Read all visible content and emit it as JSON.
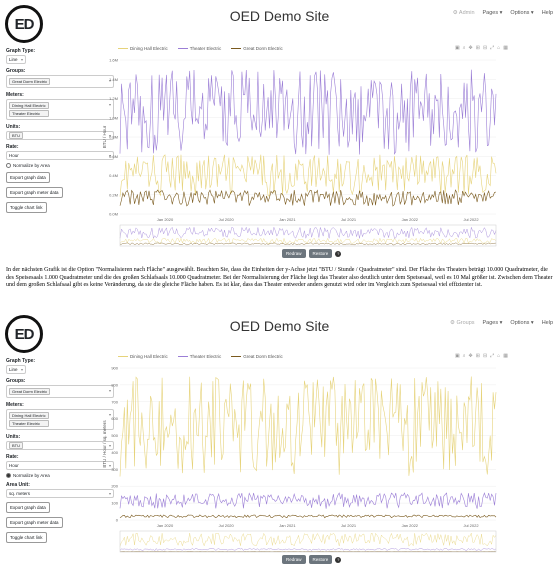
{
  "site_title": "OED Demo Site",
  "logo_text": "ED",
  "nav": {
    "admin": "Admin",
    "groups": "Groups",
    "pages": "Pages",
    "options": "Options",
    "help": "Help"
  },
  "colors": {
    "dining": "#e6d37a",
    "theater": "#9b7ed6",
    "greek": "#7a5a1e",
    "button": "#6c757d"
  },
  "panel1": {
    "graph_type_label": "Graph Type:",
    "graph_type": "Line",
    "groups_label": "Groups:",
    "groups": [
      "Great Dorm Electric"
    ],
    "meters_label": "Meters:",
    "meters": [
      "Dining Hall Electric",
      "Theater Electric"
    ],
    "units_label": "Units:",
    "unit": "BTU",
    "rate_label": "Rate:",
    "rate": "Hour",
    "normalize_label": "Normalize by Area",
    "buttons": [
      "Export graph data",
      "Export graph meter data",
      "Toggle chart link"
    ],
    "legend": [
      "Dining Hall Electric",
      "Theater Electric",
      "Great Dorm Electric"
    ],
    "ylabel": "BTU / Hour",
    "y_ticks": [
      "0.0M",
      "0.2M",
      "0.4M",
      "0.6M",
      "0.8M",
      "1.0M",
      "1.2M",
      "1.4M",
      "1.6M"
    ],
    "x_ticks": [
      "Jan 2020",
      "Jul 2020",
      "Jan 2021",
      "Jul 2021",
      "Jan 2022",
      "Jul 2022"
    ],
    "redraw": "Redraw",
    "restore": "Restore"
  },
  "prose": "In der nächsten Grafik ist die Option \"Normalisieren nach Fläche\" ausgewählt. Beachten Sie, dass die Einheiten der y-Achse jetzt \"BTU / Stunde / Quadratmeter\" sind. Der Fläche des Theaters beträgt 10.000 Quadratmeter, die des Speisesaals 1.000 Quadratmeter und die des großen Schlafsaals 10.000 Quadratmeter. Bei der Normalisierung der Fläche liegt das Theater also deutlich unter dem Speisesaal, weil es 10 Mal größer ist. Zwischen dem Theater und dem großen Schlafsaal gibt es keine Veränderung, da sie die gleiche Fläche haben. Es ist klar, dass das Theater entweder anders genutzt wird oder im Vergleich zum Speisesaal viel effizienter ist.",
  "panel2": {
    "graph_type_label": "Graph Type:",
    "graph_type": "Line",
    "groups_label": "Groups:",
    "groups": [
      "Great Dorm Electric"
    ],
    "meters_label": "Meters:",
    "meters": [
      "Dining Hall Electric",
      "Theater Electric"
    ],
    "units_label": "Units:",
    "unit": "BTU",
    "rate_label": "Rate:",
    "rate": "Hour",
    "normalize_label": "Normalize by Area",
    "area_unit_label": "Area Unit:",
    "area_unit": "sq. meters",
    "buttons": [
      "Export graph data",
      "Export graph meter data",
      "Toggle chart link"
    ],
    "legend": [
      "Dining Hall Electric",
      "Theater Electric",
      "Great Dorm Electric"
    ],
    "ylabel": "BTU / Hour / sq. meters",
    "y_ticks": [
      "0",
      "100",
      "200",
      "300",
      "400",
      "500",
      "600",
      "700",
      "800",
      "900"
    ],
    "x_ticks": [
      "Jan 2020",
      "Jul 2020",
      "Jan 2021",
      "Jul 2021",
      "Jan 2022",
      "Jul 2022"
    ],
    "redraw": "Redraw",
    "restore": "Restore"
  },
  "chart_data": [
    {
      "type": "line",
      "ylabel": "BTU / Hour",
      "ylim": [
        0,
        1.6
      ],
      "x": [
        "Jan 2020",
        "Jul 2020",
        "Jan 2021",
        "Jul 2021",
        "Jan 2022",
        "Jul 2022"
      ],
      "series": [
        {
          "name": "Dining Hall Electric",
          "min": 0.1,
          "max": 0.62
        },
        {
          "name": "Theater Electric",
          "min": 0.45,
          "max": 1.5
        },
        {
          "name": "Great Dorm Electric",
          "min": 0.05,
          "max": 0.25
        }
      ],
      "legend": "top"
    },
    {
      "type": "line",
      "ylabel": "BTU / Hour / sq. meters",
      "ylim": [
        0,
        900
      ],
      "x": [
        "Jan 2020",
        "Jul 2020",
        "Jan 2021",
        "Jul 2021",
        "Jan 2022",
        "Jul 2022"
      ],
      "series": [
        {
          "name": "Dining Hall Electric",
          "min": 150,
          "max": 850
        },
        {
          "name": "Theater Electric",
          "min": 50,
          "max": 160
        },
        {
          "name": "Great Dorm Electric",
          "min": 10,
          "max": 30
        }
      ],
      "legend": "top"
    }
  ]
}
